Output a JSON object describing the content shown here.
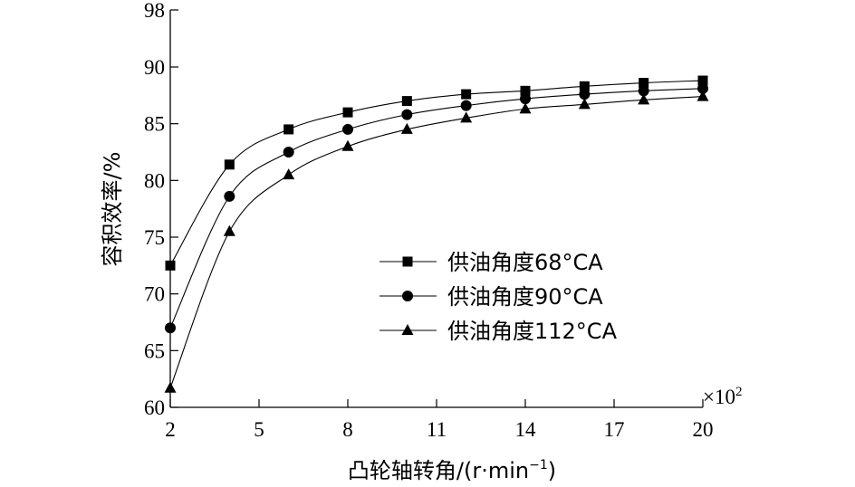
{
  "chart_data": {
    "type": "line",
    "xlabel_main": "凸轮轴转角/(r·min",
    "xlabel_sup": "−1",
    "xlabel_close": ")",
    "ylabel": "容积效率/%",
    "x_multiplier_base": "×10",
    "x_multiplier_exp": "2",
    "xlim": [
      2,
      20
    ],
    "ylim": [
      60,
      98
    ],
    "xticks": [
      2,
      5,
      8,
      11,
      14,
      17,
      20
    ],
    "yticks": [
      60,
      65,
      70,
      75,
      80,
      85,
      90,
      98
    ],
    "x": [
      2,
      4,
      6,
      8,
      10,
      12,
      14,
      16,
      18,
      20
    ],
    "series": [
      {
        "name": "供油角度68°CA",
        "marker": "square",
        "values": [
          72.5,
          81.4,
          84.5,
          86.0,
          87.0,
          87.6,
          87.9,
          88.3,
          88.6,
          88.8
        ]
      },
      {
        "name": "供油角度90°CA",
        "marker": "circle",
        "values": [
          67.0,
          78.6,
          82.5,
          84.5,
          85.8,
          86.6,
          87.2,
          87.6,
          87.9,
          88.1
        ]
      },
      {
        "name": "供油角度112°CA",
        "marker": "triangle",
        "values": [
          61.7,
          75.5,
          80.5,
          83.0,
          84.5,
          85.5,
          86.3,
          86.7,
          87.1,
          87.4
        ]
      }
    ],
    "legend_position": "center-right",
    "grid": false
  }
}
